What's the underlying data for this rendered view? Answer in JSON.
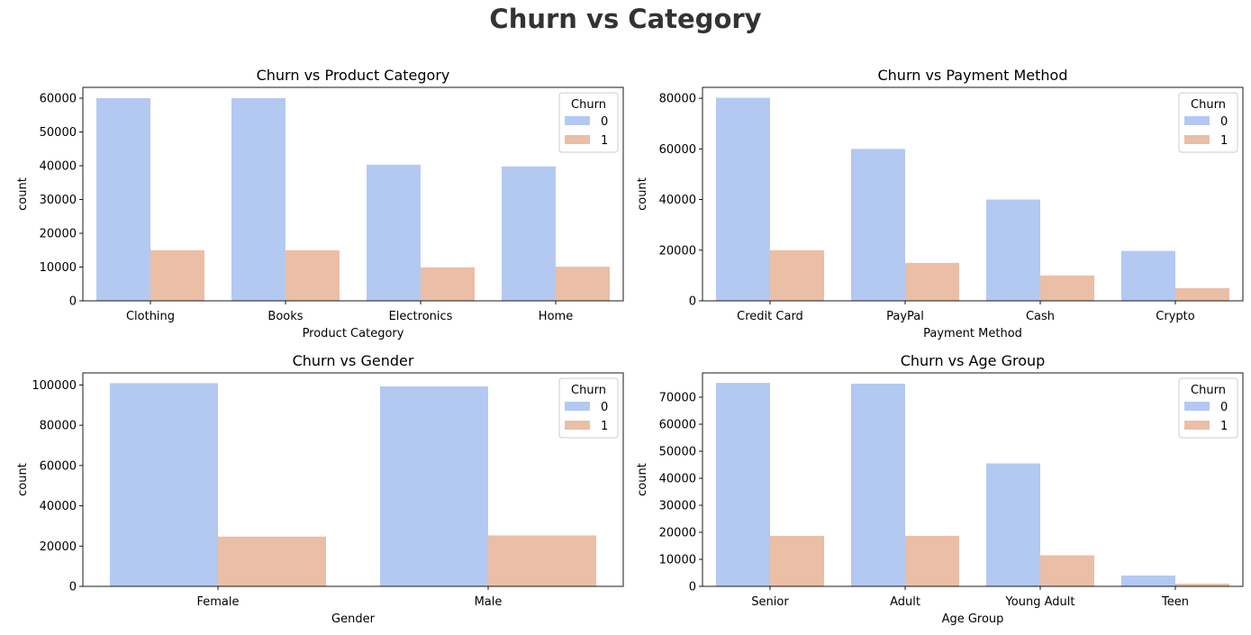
{
  "figure": {
    "title": "Churn vs Category"
  },
  "colors": {
    "churn_0": "#b3c9f2",
    "churn_1": "#ebbea6"
  },
  "chart_data": [
    {
      "type": "bar",
      "title": "Churn vs Product Category",
      "xlabel": "Product Category",
      "ylabel": "count",
      "categories": [
        "Clothing",
        "Books",
        "Electronics",
        "Home"
      ],
      "series": [
        {
          "name": "0",
          "values": [
            60000,
            60000,
            40300,
            39800
          ]
        },
        {
          "name": "1",
          "values": [
            15000,
            15000,
            9900,
            10100
          ]
        }
      ],
      "ylim": [
        0,
        63200
      ],
      "yticks": [
        0,
        10000,
        20000,
        30000,
        40000,
        50000,
        60000
      ],
      "legend": {
        "title": "Churn",
        "position": "top-right"
      }
    },
    {
      "type": "bar",
      "title": "Churn vs Payment Method",
      "xlabel": "Payment Method",
      "ylabel": "count",
      "categories": [
        "Credit Card",
        "PayPal",
        "Cash",
        "Crypto"
      ],
      "series": [
        {
          "name": "0",
          "values": [
            80200,
            60000,
            40000,
            19700
          ]
        },
        {
          "name": "1",
          "values": [
            20000,
            15000,
            10000,
            5000
          ]
        }
      ],
      "ylim": [
        0,
        84300
      ],
      "yticks": [
        0,
        20000,
        40000,
        60000,
        80000
      ],
      "legend": {
        "title": "Churn",
        "position": "top-right"
      }
    },
    {
      "type": "bar",
      "title": "Churn vs Gender",
      "xlabel": "Gender",
      "ylabel": "count",
      "categories": [
        "Female",
        "Male"
      ],
      "series": [
        {
          "name": "0",
          "values": [
            100900,
            99300
          ]
        },
        {
          "name": "1",
          "values": [
            24700,
            25300
          ]
        }
      ],
      "ylim": [
        0,
        106000
      ],
      "yticks": [
        0,
        20000,
        40000,
        60000,
        80000,
        100000
      ],
      "legend": {
        "title": "Churn",
        "position": "top-right"
      }
    },
    {
      "type": "bar",
      "title": "Churn vs Age Group",
      "xlabel": "Age Group",
      "ylabel": "count",
      "categories": [
        "Senior",
        "Adult",
        "Young Adult",
        "Teen"
      ],
      "series": [
        {
          "name": "0",
          "values": [
            75300,
            75000,
            45500,
            4000
          ]
        },
        {
          "name": "1",
          "values": [
            18700,
            18700,
            11500,
            1000
          ]
        }
      ],
      "ylim": [
        0,
        79000
      ],
      "yticks": [
        0,
        10000,
        20000,
        30000,
        40000,
        50000,
        60000,
        70000
      ],
      "legend": {
        "title": "Churn",
        "position": "top-right"
      }
    }
  ]
}
